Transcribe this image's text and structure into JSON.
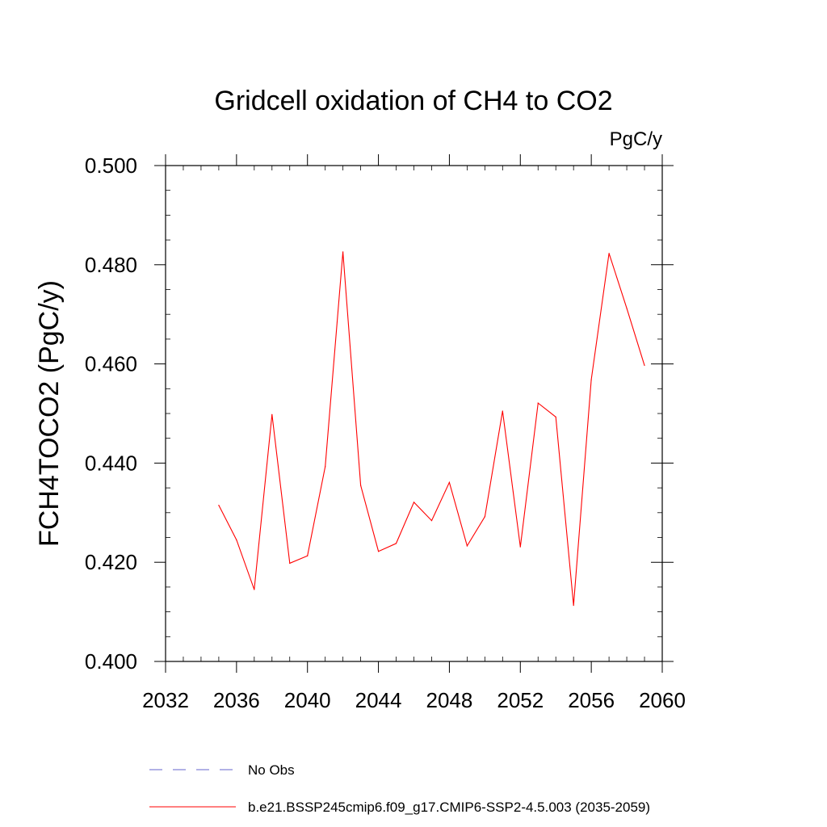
{
  "chart_data": {
    "type": "line",
    "title": "Gridcell oxidation of CH4 to CO2",
    "units": "PgC/y",
    "ylabel": "FCH4TOCO2  (PgC/y)",
    "xlabel": "",
    "xlim": [
      2032,
      2060
    ],
    "ylim": [
      0.4,
      0.5
    ],
    "x_ticks": [
      2032,
      2036,
      2040,
      2044,
      2048,
      2052,
      2056,
      2060
    ],
    "x_tick_labels": [
      "2032",
      "2036",
      "2040",
      "2044",
      "2048",
      "2052",
      "2056",
      "2060"
    ],
    "y_ticks": [
      0.4,
      0.42,
      0.44,
      0.46,
      0.48,
      0.5
    ],
    "y_tick_labels": [
      "0.400",
      "0.420",
      "0.440",
      "0.460",
      "0.480",
      "0.500"
    ],
    "grid": false,
    "series": [
      {
        "name": "b.e21.BSSP245cmip6.f09_g17.CMIP6-SSP2-4.5.003 (2035-2059)",
        "color": "#ff0000",
        "x": [
          2035,
          2036,
          2037,
          2038,
          2039,
          2040,
          2041,
          2042,
          2043,
          2044,
          2045,
          2046,
          2047,
          2048,
          2049,
          2050,
          2051,
          2052,
          2053,
          2054,
          2055,
          2056,
          2057,
          2058,
          2059
        ],
        "values": [
          0.4315,
          0.4245,
          0.4145,
          0.4498,
          0.4198,
          0.4213,
          0.4393,
          0.4826,
          0.4355,
          0.4222,
          0.4238,
          0.4321,
          0.4284,
          0.4361,
          0.4233,
          0.4292,
          0.4505,
          0.4231,
          0.4521,
          0.4493,
          0.4113,
          0.4568,
          0.4823,
          0.4712,
          0.4597
        ]
      }
    ],
    "legend": {
      "placement": "bottom",
      "entries": [
        {
          "label": "No Obs",
          "style": "dashed",
          "color": "#6666cc"
        },
        {
          "label": "b.e21.BSSP245cmip6.f09_g17.CMIP6-SSP2-4.5.003 (2035-2059)",
          "style": "solid",
          "color": "#ff0000"
        }
      ]
    }
  }
}
